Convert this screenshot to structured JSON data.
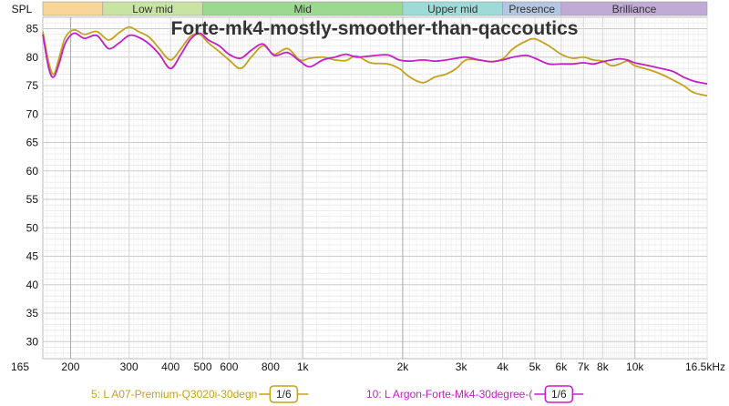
{
  "chart_data": {
    "type": "line",
    "title": "Forte-mk4-mostly-smoother-than-qaccoutics",
    "ylabel": "SPL",
    "xlabel": "",
    "x_scale": "log",
    "xlim": [
      165,
      16500
    ],
    "ylim": [
      27,
      87
    ],
    "x_ticks": [
      {
        "v": 165,
        "t": "165"
      },
      {
        "v": 200,
        "t": "200"
      },
      {
        "v": 300,
        "t": "300"
      },
      {
        "v": 400,
        "t": "400"
      },
      {
        "v": 500,
        "t": "500"
      },
      {
        "v": 600,
        "t": "600"
      },
      {
        "v": 800,
        "t": "800"
      },
      {
        "v": 1000,
        "t": "1k"
      },
      {
        "v": 2000,
        "t": "2k"
      },
      {
        "v": 3000,
        "t": "3k"
      },
      {
        "v": 4000,
        "t": "4k"
      },
      {
        "v": 5000,
        "t": "5k"
      },
      {
        "v": 6000,
        "t": "6k"
      },
      {
        "v": 7000,
        "t": "7k"
      },
      {
        "v": 8000,
        "t": "8k"
      },
      {
        "v": 10000,
        "t": "10k"
      },
      {
        "v": 16500,
        "t": "16.5kHz"
      }
    ],
    "y_ticks": [
      30,
      35,
      40,
      45,
      50,
      55,
      60,
      65,
      70,
      75,
      80,
      85
    ],
    "bands": [
      {
        "label": "",
        "from": 165,
        "to": 250,
        "color": "#f8d598"
      },
      {
        "label": "Low mid",
        "from": 250,
        "to": 500,
        "color": "#c9e3a3"
      },
      {
        "label": "Mid",
        "from": 500,
        "to": 2000,
        "color": "#9ad98f"
      },
      {
        "label": "Upper mid",
        "from": 2000,
        "to": 4000,
        "color": "#9edbd6"
      },
      {
        "label": "Presence",
        "from": 4000,
        "to": 6000,
        "color": "#b5c6e3"
      },
      {
        "label": "Brilliance",
        "from": 6000,
        "to": 16500,
        "color": "#c0aad6"
      }
    ],
    "series": [
      {
        "name": "5: L A07-Premium-Q3020i-30degn",
        "color": "#c4a21e",
        "smoothing": "1/6",
        "points": [
          [
            165,
            84.5
          ],
          [
            172,
            79
          ],
          [
            178,
            77
          ],
          [
            185,
            80
          ],
          [
            193,
            83.5
          ],
          [
            205,
            84.8
          ],
          [
            220,
            84
          ],
          [
            240,
            84.5
          ],
          [
            260,
            83
          ],
          [
            280,
            84.3
          ],
          [
            300,
            85.3
          ],
          [
            320,
            84.5
          ],
          [
            345,
            83.5
          ],
          [
            370,
            81.5
          ],
          [
            400,
            79.5
          ],
          [
            430,
            81.5
          ],
          [
            460,
            83.7
          ],
          [
            490,
            84
          ],
          [
            520,
            82.5
          ],
          [
            560,
            81
          ],
          [
            600,
            79.5
          ],
          [
            650,
            78
          ],
          [
            700,
            80
          ],
          [
            760,
            82
          ],
          [
            820,
            80.5
          ],
          [
            900,
            81.5
          ],
          [
            980,
            79.5
          ],
          [
            1050,
            79.8
          ],
          [
            1150,
            80
          ],
          [
            1250,
            79.5
          ],
          [
            1350,
            79.4
          ],
          [
            1450,
            80.2
          ],
          [
            1600,
            79
          ],
          [
            1800,
            78.8
          ],
          [
            1950,
            78
          ],
          [
            2100,
            76.5
          ],
          [
            2300,
            75.5
          ],
          [
            2500,
            76.5
          ],
          [
            2700,
            77
          ],
          [
            2900,
            78
          ],
          [
            3100,
            79.5
          ],
          [
            3400,
            79.5
          ],
          [
            3700,
            79.2
          ],
          [
            4000,
            79.7
          ],
          [
            4300,
            81.5
          ],
          [
            4700,
            82.8
          ],
          [
            5000,
            83.2
          ],
          [
            5500,
            82
          ],
          [
            6000,
            80.5
          ],
          [
            6500,
            79.8
          ],
          [
            7000,
            80
          ],
          [
            7500,
            79.5
          ],
          [
            8000,
            79.3
          ],
          [
            8500,
            78.5
          ],
          [
            9000,
            78.8
          ],
          [
            9500,
            79.3
          ],
          [
            10000,
            78.5
          ],
          [
            11000,
            77.8
          ],
          [
            12000,
            77
          ],
          [
            13000,
            76
          ],
          [
            14000,
            75
          ],
          [
            15000,
            73.8
          ],
          [
            16500,
            73.2
          ]
        ]
      },
      {
        "name": "10: L Argon-Forte-Mk4-30degree-(",
        "color": "#c41fc4",
        "smoothing": "1/6",
        "points": [
          [
            165,
            84
          ],
          [
            172,
            78
          ],
          [
            178,
            76.5
          ],
          [
            185,
            79
          ],
          [
            193,
            82.5
          ],
          [
            205,
            84.2
          ],
          [
            220,
            83.3
          ],
          [
            240,
            83.8
          ],
          [
            260,
            81.5
          ],
          [
            280,
            82.5
          ],
          [
            300,
            83.8
          ],
          [
            320,
            83.5
          ],
          [
            345,
            82.3
          ],
          [
            370,
            80.5
          ],
          [
            400,
            78
          ],
          [
            430,
            80.5
          ],
          [
            460,
            83.2
          ],
          [
            490,
            84.2
          ],
          [
            520,
            83
          ],
          [
            560,
            82
          ],
          [
            600,
            80.5
          ],
          [
            650,
            79.8
          ],
          [
            700,
            81.2
          ],
          [
            760,
            82.3
          ],
          [
            820,
            80.3
          ],
          [
            900,
            80.8
          ],
          [
            980,
            79.3
          ],
          [
            1050,
            78.3
          ],
          [
            1150,
            79.5
          ],
          [
            1250,
            80
          ],
          [
            1350,
            80.5
          ],
          [
            1450,
            80
          ],
          [
            1600,
            80.2
          ],
          [
            1800,
            80.4
          ],
          [
            1950,
            79.5
          ],
          [
            2100,
            79.3
          ],
          [
            2300,
            79.5
          ],
          [
            2500,
            79.3
          ],
          [
            2700,
            79.5
          ],
          [
            2900,
            79.8
          ],
          [
            3100,
            80
          ],
          [
            3400,
            79.5
          ],
          [
            3700,
            79.2
          ],
          [
            4000,
            79.5
          ],
          [
            4300,
            80
          ],
          [
            4700,
            80.3
          ],
          [
            5000,
            79.8
          ],
          [
            5500,
            78.8
          ],
          [
            6000,
            78.8
          ],
          [
            6500,
            78.8
          ],
          [
            7000,
            79
          ],
          [
            7500,
            78.8
          ],
          [
            8000,
            79.2
          ],
          [
            8500,
            79.5
          ],
          [
            9000,
            79.7
          ],
          [
            9500,
            79.5
          ],
          [
            10000,
            79
          ],
          [
            11000,
            78.5
          ],
          [
            12000,
            78
          ],
          [
            13000,
            77.5
          ],
          [
            14000,
            76.5
          ],
          [
            15000,
            75.8
          ],
          [
            16500,
            75.3
          ]
        ]
      }
    ]
  }
}
